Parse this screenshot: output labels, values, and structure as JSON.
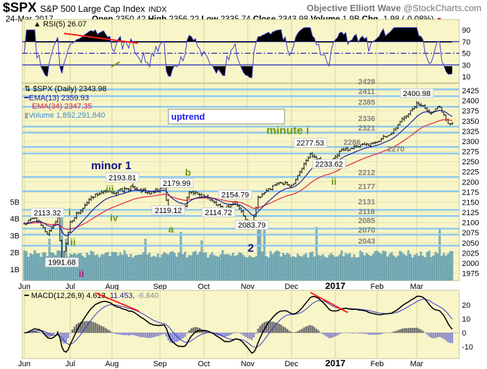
{
  "header": {
    "symbol": "$SPX",
    "name": "S&P 500 Large Cap Index",
    "exchange": "INDX",
    "brand": "Objective Elliott Wave",
    "source": "@StockCharts.com",
    "date": "24-Mar-2017",
    "open_label": "Open",
    "open": "2350.42",
    "high_label": "High",
    "high": "2356.22",
    "low_label": "Low",
    "low": "2335.74",
    "close_label": "Close",
    "close": "2343.98",
    "volume_label": "Volume",
    "volume": "1.9B",
    "chg_label": "Chg",
    "chg": "-1.98 (-0.08%)"
  },
  "colors": {
    "panel_bg": "#f8f6c8",
    "grid": "#dcd8a0",
    "support": "#8ec8ee",
    "ema13": "#1a1aa0",
    "ema34": "#e0203a",
    "volume": "#7ab0bc",
    "rsi": "#3b3bd0",
    "trend": "#ff1a1a",
    "wave_green": "#6a9a10",
    "wave_navy": "#10108a",
    "wave_magenta": "#b0207a"
  },
  "chart_data": [
    {
      "type": "line",
      "title": "RSI(5) 26.07",
      "legend": "RSI(5) 26.07",
      "ylim": [
        0,
        100
      ],
      "yticks": [
        "90",
        "70",
        "50",
        "30",
        "10"
      ],
      "ytick_values": [
        90,
        70,
        50,
        30,
        10
      ],
      "reference_lines": [
        70,
        50,
        30
      ]
    },
    {
      "type": "bar",
      "subtype": "ohlc",
      "title": "$SPX (Daily) 2343.98",
      "legend": [
        "$SPX (Daily) 2343.98",
        "EMA(13) 2359.93",
        "EMA(34) 2347.35",
        "Volume 1,892,291,840"
      ],
      "x_unit": "trading day index from 1-Jun-2016",
      "xticks": [
        {
          "label": "Jun",
          "x": 0
        },
        {
          "label": "Jul",
          "x": 22
        },
        {
          "label": "Aug",
          "x": 42
        },
        {
          "label": "Sep",
          "x": 65
        },
        {
          "label": "Oct",
          "x": 86
        },
        {
          "label": "Nov",
          "x": 107
        },
        {
          "label": "Dec",
          "x": 128
        },
        {
          "label": "2017",
          "x": 149,
          "bold": true
        },
        {
          "label": "Feb",
          "x": 169
        },
        {
          "label": "Mar",
          "x": 188
        }
      ],
      "ylim": [
        1962,
        2440
      ],
      "yticks": [
        2425,
        2400,
        2375,
        2350,
        2325,
        2300,
        2275,
        2250,
        2225,
        2200,
        2175,
        2150,
        2125,
        2100,
        2075,
        2050,
        2025,
        2000,
        1975
      ],
      "close_anchors": [
        [
          0,
          2097
        ],
        [
          5,
          2112
        ],
        [
          11,
          2072
        ],
        [
          16,
          2113
        ],
        [
          18,
          2003
        ],
        [
          22,
          2102
        ],
        [
          27,
          2130
        ],
        [
          32,
          2162
        ],
        [
          37,
          2175
        ],
        [
          42,
          2172
        ],
        [
          52,
          2188
        ],
        [
          60,
          2170
        ],
        [
          67,
          2186
        ],
        [
          69,
          2128
        ],
        [
          77,
          2140
        ],
        [
          79,
          2176
        ],
        [
          88,
          2160
        ],
        [
          95,
          2132
        ],
        [
          101,
          2150
        ],
        [
          109,
          2087
        ],
        [
          112,
          2163
        ],
        [
          122,
          2198
        ],
        [
          128,
          2191
        ],
        [
          137,
          2270
        ],
        [
          146,
          2240
        ],
        [
          151,
          2276
        ],
        [
          167,
          2296
        ],
        [
          175,
          2316
        ],
        [
          180,
          2349
        ],
        [
          188,
          2395
        ],
        [
          195,
          2370
        ],
        [
          199,
          2385
        ],
        [
          203,
          2344
        ],
        [
          205,
          2344
        ]
      ],
      "volume_axis": [
        "5B",
        "4B",
        "3B",
        "2B",
        "1B"
      ],
      "volume_axis_values": [
        5,
        4,
        3,
        2,
        1
      ],
      "volume_base_billions": 1.9,
      "volume_spikes": [
        [
          12,
          2.8
        ],
        [
          18,
          4.5
        ],
        [
          20,
          2.8
        ],
        [
          58,
          2.8
        ],
        [
          75,
          3.2
        ],
        [
          85,
          2.7
        ],
        [
          112,
          3.5
        ],
        [
          113,
          3.6
        ],
        [
          115,
          3.5
        ],
        [
          140,
          3.5
        ],
        [
          199,
          3.4
        ]
      ],
      "support_levels": [
        {
          "value": 2428,
          "label": "2428",
          "at": 164
        },
        {
          "value": 2411,
          "label": "2411",
          "at": 164
        },
        {
          "value": 2385,
          "label": "2385",
          "at": 164
        },
        {
          "value": 2336,
          "label": "2336",
          "at": 164
        },
        {
          "value": 2321,
          "label": "2321",
          "at": 164
        },
        {
          "value": 2286,
          "label": "2286",
          "at": 157
        },
        {
          "value": 2270,
          "label": "2270",
          "at": 178
        },
        {
          "value": 2212,
          "label": "2212",
          "at": 164
        },
        {
          "value": 2177,
          "label": "2177",
          "at": 164
        },
        {
          "value": 2131,
          "label": "2131",
          "at": 164
        },
        {
          "value": 2116,
          "label": "2116",
          "at": 164
        },
        {
          "value": 2085,
          "label": "2085",
          "at": 164
        },
        {
          "value": 2070,
          "label": "2070",
          "at": 164
        },
        {
          "value": 2043,
          "label": "2043",
          "at": 164
        }
      ],
      "price_callouts": [
        {
          "label": "2193.81",
          "x": 47,
          "y": 2200
        },
        {
          "label": "2179.99",
          "x": 73,
          "y": 2186
        },
        {
          "label": "2113.32",
          "x": 11,
          "y": 2113
        },
        {
          "label": "2119.12",
          "x": 69,
          "y": 2119
        },
        {
          "label": "2114.72",
          "x": 93,
          "y": 2114
        },
        {
          "label": "2154.79",
          "x": 101,
          "y": 2158
        },
        {
          "label": "2083.79",
          "x": 109,
          "y": 2083
        },
        {
          "label": "1991.68",
          "x": 18,
          "y": 1991
        },
        {
          "label": "2277.53",
          "x": 137,
          "y": 2285
        },
        {
          "label": "2233.62",
          "x": 146,
          "y": 2233
        },
        {
          "label": "2400.98",
          "x": 188,
          "y": 2407
        }
      ],
      "wave_labels": [
        {
          "label": "minute i",
          "color": "green",
          "x": 116,
          "y": 2318,
          "size": "l"
        },
        {
          "label": "minor 1",
          "color": "navy",
          "x": 32,
          "y": 2221,
          "size": "l"
        },
        {
          "label": "b",
          "color": "green",
          "x": 77,
          "y": 2205,
          "size": "m"
        },
        {
          "label": "iii",
          "color": "green",
          "x": 39,
          "y": 2184,
          "size": "m"
        },
        {
          "label": "iv",
          "color": "green",
          "x": 41,
          "y": 2104,
          "size": "m"
        },
        {
          "label": "i",
          "color": "green",
          "x": 21,
          "y": 2117,
          "size": "m"
        },
        {
          "label": "ii",
          "color": "green",
          "x": 22,
          "y": 2044,
          "size": "m"
        },
        {
          "label": "a",
          "color": "green",
          "x": 69,
          "y": 2075,
          "size": "m"
        },
        {
          "label": "2",
          "color": "navy",
          "x": 107,
          "y": 2028,
          "size": "l"
        },
        {
          "label": "ii",
          "color": "green",
          "x": 147,
          "y": 2193,
          "size": "m"
        },
        {
          "label": "ii",
          "color": "magenta",
          "x": 26,
          "y": 1969,
          "size": "m"
        }
      ],
      "annotation_box": "uptrend"
    },
    {
      "type": "line",
      "title": "MACD(12,26,9) 4.613, 11.453, -6.840",
      "legend": [
        "MACD(12,26,9)",
        "4.613,",
        "11.453,",
        "-6.840"
      ],
      "ylim": [
        -18,
        30
      ],
      "yticks": [
        "20",
        "10",
        "0",
        "-10"
      ],
      "ytick_values": [
        20,
        10,
        0,
        -10
      ]
    }
  ]
}
